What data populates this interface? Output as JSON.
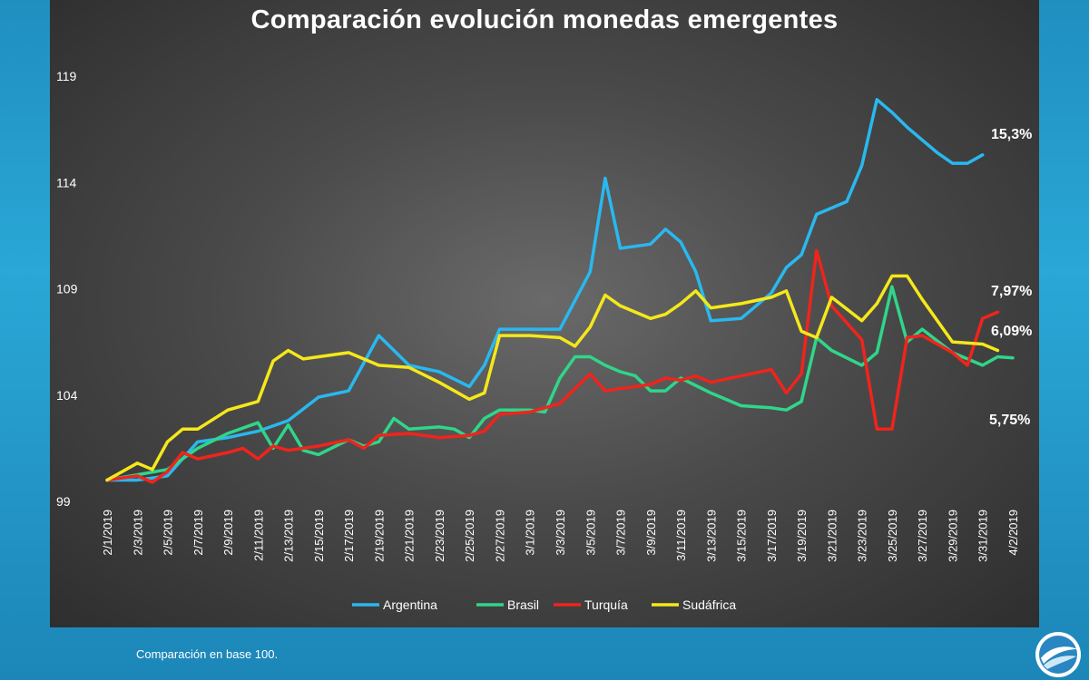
{
  "title": "Comparación evolución monedas emergentes",
  "footnote": "Comparación en base 100.",
  "logo": "circular-globe-logo",
  "chart_data": {
    "type": "line",
    "title": "Comparación evolución monedas emergentes",
    "xlabel": "",
    "ylabel": "",
    "ylim": [
      99,
      119
    ],
    "yticks": [
      99,
      104,
      109,
      114,
      119
    ],
    "x": [
      "2/1/2019",
      "2/3/2019",
      "2/5/2019",
      "2/7/2019",
      "2/9/2019",
      "2/11/2019",
      "2/13/2019",
      "2/15/2019",
      "2/17/2019",
      "2/19/2019",
      "2/21/2019",
      "2/23/2019",
      "2/25/2019",
      "2/27/2019",
      "3/1/2019",
      "3/3/2019",
      "3/5/2019",
      "3/7/2019",
      "3/9/2019",
      "3/11/2019",
      "3/13/2019",
      "3/15/2019",
      "3/17/2019",
      "3/19/2019",
      "3/21/2019",
      "3/23/2019",
      "3/25/2019",
      "3/27/2019",
      "3/29/2019",
      "3/31/2019",
      "4/2/2019"
    ],
    "grid": false,
    "legend_position": "bottom",
    "series": [
      {
        "name": "Argentina",
        "color": "#29b8f0",
        "end_label": "15,3%",
        "points": [
          [
            0,
            100
          ],
          [
            1,
            100
          ],
          [
            2,
            100.2
          ],
          [
            3,
            101.8
          ],
          [
            4,
            102
          ],
          [
            5,
            102.3
          ],
          [
            6,
            102.8
          ],
          [
            7,
            103.9
          ],
          [
            8,
            104.2
          ],
          [
            9,
            106.8
          ],
          [
            10,
            105.4
          ],
          [
            11,
            105.1
          ],
          [
            12,
            104.4
          ],
          [
            12.5,
            105.4
          ],
          [
            13,
            107.1
          ],
          [
            14,
            107.1
          ],
          [
            15,
            107.1
          ],
          [
            16,
            109.8
          ],
          [
            16.5,
            114.2
          ],
          [
            17,
            110.9
          ],
          [
            18,
            111.1
          ],
          [
            18.5,
            111.8
          ],
          [
            19,
            111.2
          ],
          [
            19.5,
            109.8
          ],
          [
            20,
            107.5
          ],
          [
            21,
            107.6
          ],
          [
            22,
            108.8
          ],
          [
            22.5,
            110
          ],
          [
            23,
            110.6
          ],
          [
            23.5,
            112.5
          ],
          [
            24,
            112.8
          ],
          [
            24.5,
            113.1
          ],
          [
            25,
            114.8
          ],
          [
            25.5,
            117.9
          ],
          [
            26,
            117.3
          ],
          [
            26.5,
            116.6
          ],
          [
            27,
            116
          ],
          [
            27.5,
            115.4
          ],
          [
            28,
            114.9
          ],
          [
            28.5,
            114.9
          ],
          [
            29,
            115.3
          ]
        ]
      },
      {
        "name": "Brasil",
        "color": "#2fd68a",
        "end_label": "5,75%",
        "points": [
          [
            0,
            100
          ],
          [
            2,
            100.5
          ],
          [
            3,
            101.5
          ],
          [
            4,
            102.2
          ],
          [
            5,
            102.7
          ],
          [
            5.5,
            101.5
          ],
          [
            6,
            102.6
          ],
          [
            6.5,
            101.4
          ],
          [
            7,
            101.2
          ],
          [
            8,
            101.9
          ],
          [
            8.5,
            101.6
          ],
          [
            9,
            101.8
          ],
          [
            9.5,
            102.9
          ],
          [
            10,
            102.4
          ],
          [
            11,
            102.5
          ],
          [
            11.5,
            102.4
          ],
          [
            12,
            102
          ],
          [
            12.5,
            102.9
          ],
          [
            13,
            103.3
          ],
          [
            14,
            103.3
          ],
          [
            14.5,
            103.2
          ],
          [
            15,
            104.8
          ],
          [
            15.5,
            105.8
          ],
          [
            16,
            105.8
          ],
          [
            16.5,
            105.4
          ],
          [
            17,
            105.1
          ],
          [
            17.5,
            104.9
          ],
          [
            18,
            104.2
          ],
          [
            18.5,
            104.2
          ],
          [
            19,
            104.8
          ],
          [
            20,
            104.1
          ],
          [
            21,
            103.5
          ],
          [
            22,
            103.4
          ],
          [
            22.5,
            103.3
          ],
          [
            23,
            103.7
          ],
          [
            23.5,
            106.7
          ],
          [
            24,
            106.1
          ],
          [
            25,
            105.4
          ],
          [
            25.5,
            106
          ],
          [
            26,
            109.1
          ],
          [
            26.5,
            106.5
          ],
          [
            27,
            107.1
          ],
          [
            28,
            106
          ],
          [
            29,
            105.4
          ],
          [
            29.5,
            105.8
          ],
          [
            30,
            105.75
          ]
        ]
      },
      {
        "name": "Turquía",
        "color": "#f0241c",
        "end_label": "7,97%",
        "points": [
          [
            0,
            100
          ],
          [
            1,
            100.2
          ],
          [
            1.5,
            99.9
          ],
          [
            2,
            100.4
          ],
          [
            2.5,
            101.3
          ],
          [
            3,
            101
          ],
          [
            4,
            101.3
          ],
          [
            4.5,
            101.5
          ],
          [
            5,
            101
          ],
          [
            5.5,
            101.6
          ],
          [
            6,
            101.4
          ],
          [
            7,
            101.6
          ],
          [
            8,
            101.9
          ],
          [
            8.5,
            101.5
          ],
          [
            9,
            102.1
          ],
          [
            10,
            102.2
          ],
          [
            11,
            102
          ],
          [
            12,
            102.1
          ],
          [
            12.5,
            102.3
          ],
          [
            13,
            103.1
          ],
          [
            14,
            103.2
          ],
          [
            15,
            103.6
          ],
          [
            16,
            105
          ],
          [
            16.5,
            104.2
          ],
          [
            17,
            104.3
          ],
          [
            18,
            104.5
          ],
          [
            18.5,
            104.8
          ],
          [
            19,
            104.7
          ],
          [
            19.5,
            104.9
          ],
          [
            20,
            104.6
          ],
          [
            21,
            104.9
          ],
          [
            22,
            105.2
          ],
          [
            22.5,
            104.1
          ],
          [
            23,
            105
          ],
          [
            23.5,
            110.8
          ],
          [
            24,
            108.2
          ],
          [
            25,
            106.6
          ],
          [
            25.5,
            102.4
          ],
          [
            26,
            102.4
          ],
          [
            26.5,
            106.7
          ],
          [
            27,
            106.8
          ],
          [
            28,
            106
          ],
          [
            28.5,
            105.4
          ],
          [
            29,
            107.6
          ],
          [
            29.5,
            107.9
          ]
        ]
      },
      {
        "name": "Sudáfrica",
        "color": "#f5e81a",
        "end_label": "6,09%",
        "points": [
          [
            0,
            100
          ],
          [
            1,
            100.8
          ],
          [
            1.5,
            100.5
          ],
          [
            2,
            101.8
          ],
          [
            2.5,
            102.4
          ],
          [
            3,
            102.4
          ],
          [
            4,
            103.3
          ],
          [
            5,
            103.7
          ],
          [
            5.5,
            105.6
          ],
          [
            6,
            106.1
          ],
          [
            6.5,
            105.7
          ],
          [
            8,
            106
          ],
          [
            9,
            105.4
          ],
          [
            10,
            105.3
          ],
          [
            11,
            104.6
          ],
          [
            12,
            103.8
          ],
          [
            12.5,
            104.1
          ],
          [
            13,
            106.8
          ],
          [
            14,
            106.8
          ],
          [
            15,
            106.7
          ],
          [
            15.5,
            106.3
          ],
          [
            16,
            107.2
          ],
          [
            16.5,
            108.7
          ],
          [
            17,
            108.2
          ],
          [
            18,
            107.6
          ],
          [
            18.5,
            107.8
          ],
          [
            19,
            108.3
          ],
          [
            19.5,
            108.9
          ],
          [
            20,
            108.1
          ],
          [
            21,
            108.3
          ],
          [
            22,
            108.6
          ],
          [
            22.5,
            108.9
          ],
          [
            23,
            107
          ],
          [
            23.5,
            106.7
          ],
          [
            24,
            108.6
          ],
          [
            25,
            107.5
          ],
          [
            25.5,
            108.3
          ],
          [
            26,
            109.6
          ],
          [
            26.5,
            109.6
          ],
          [
            27,
            108.5
          ],
          [
            28,
            106.5
          ],
          [
            29,
            106.4
          ],
          [
            29.5,
            106.1
          ]
        ]
      }
    ]
  }
}
